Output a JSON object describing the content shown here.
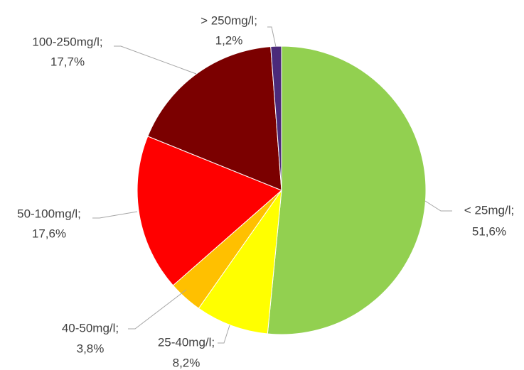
{
  "chart_data": {
    "type": "pie",
    "categories": [
      "< 25mg/l;",
      "25-40mg/l;",
      "40-50mg/l;",
      "50-100mg/l;",
      "100-250mg/l;",
      "> 250mg/l;"
    ],
    "values": [
      51.6,
      8.2,
      3.8,
      17.6,
      17.7,
      1.2
    ],
    "value_labels": [
      "51,6%",
      "8,2%",
      "3,8%",
      "17,6%",
      "17,7%",
      "1,2%"
    ],
    "colors": [
      "#92d050",
      "#ffff00",
      "#ffc000",
      "#ff0000",
      "#7b0000",
      "#4b2a7a"
    ]
  }
}
